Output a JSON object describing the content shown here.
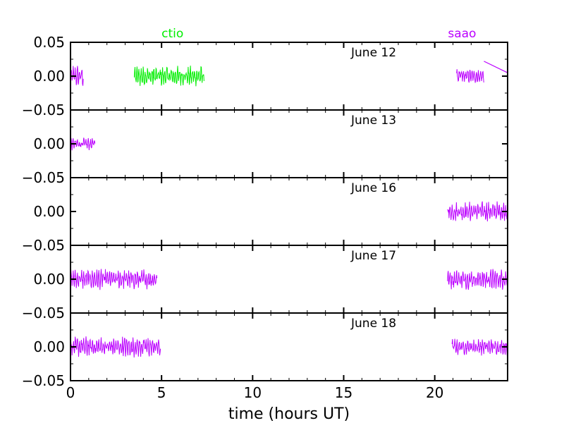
{
  "chart_data": {
    "type": "line",
    "xlabel": "time (hours UT)",
    "xlim": [
      0,
      24
    ],
    "ylim": [
      -0.05,
      0.05
    ],
    "x_ticks": [
      0,
      5,
      10,
      15,
      20
    ],
    "x_tick_labels": [
      "0",
      "5",
      "10",
      "15",
      "20"
    ],
    "y_ticks": [
      -0.05,
      0.0,
      0.05
    ],
    "y_tick_labels": [
      "−0.05",
      "0.00",
      "0.05"
    ],
    "grid": false,
    "colors": {
      "ctio": "#00ee00",
      "saao": "#bb00ff"
    },
    "site_labels": [
      {
        "name": "ctio",
        "text": "ctio",
        "x": 5.6
      },
      {
        "name": "saao",
        "text": "saao",
        "x": 21.5
      }
    ],
    "panels": [
      {
        "label": "June 12",
        "show_top_ytick": true,
        "segments": [
          {
            "site": "saao",
            "x_start": 0.0,
            "x_end": 0.72,
            "amplitude": 0.017
          },
          {
            "site": "ctio",
            "x_start": 3.5,
            "x_end": 7.35,
            "amplitude": 0.016
          },
          {
            "site": "saao",
            "x_start": 21.2,
            "x_end": 22.7,
            "amplitude": 0.011
          }
        ],
        "lines": [
          {
            "site": "saao",
            "x": [
              22.7,
              24.0
            ],
            "y": [
              0.022,
              0.005
            ]
          }
        ]
      },
      {
        "label": "June 13",
        "show_top_ytick": false,
        "segments": [
          {
            "site": "saao",
            "x_start": 0.0,
            "x_end": 1.35,
            "amplitude": 0.01
          }
        ],
        "lines": []
      },
      {
        "label": "June 16",
        "show_top_ytick": false,
        "segments": [
          {
            "site": "saao",
            "x_start": 20.7,
            "x_end": 24.0,
            "amplitude": 0.016
          }
        ],
        "lines": []
      },
      {
        "label": "June 17",
        "show_top_ytick": false,
        "segments": [
          {
            "site": "saao",
            "x_start": 0.0,
            "x_end": 4.75,
            "amplitude": 0.016
          },
          {
            "site": "saao",
            "x_start": 20.7,
            "x_end": 24.0,
            "amplitude": 0.016
          }
        ],
        "lines": []
      },
      {
        "label": "June 18",
        "show_top_ytick": false,
        "segments": [
          {
            "site": "saao",
            "x_start": 0.0,
            "x_end": 4.95,
            "amplitude": 0.016
          },
          {
            "site": "saao",
            "x_start": 20.95,
            "x_end": 24.0,
            "amplitude": 0.013
          }
        ],
        "lines": []
      }
    ]
  }
}
